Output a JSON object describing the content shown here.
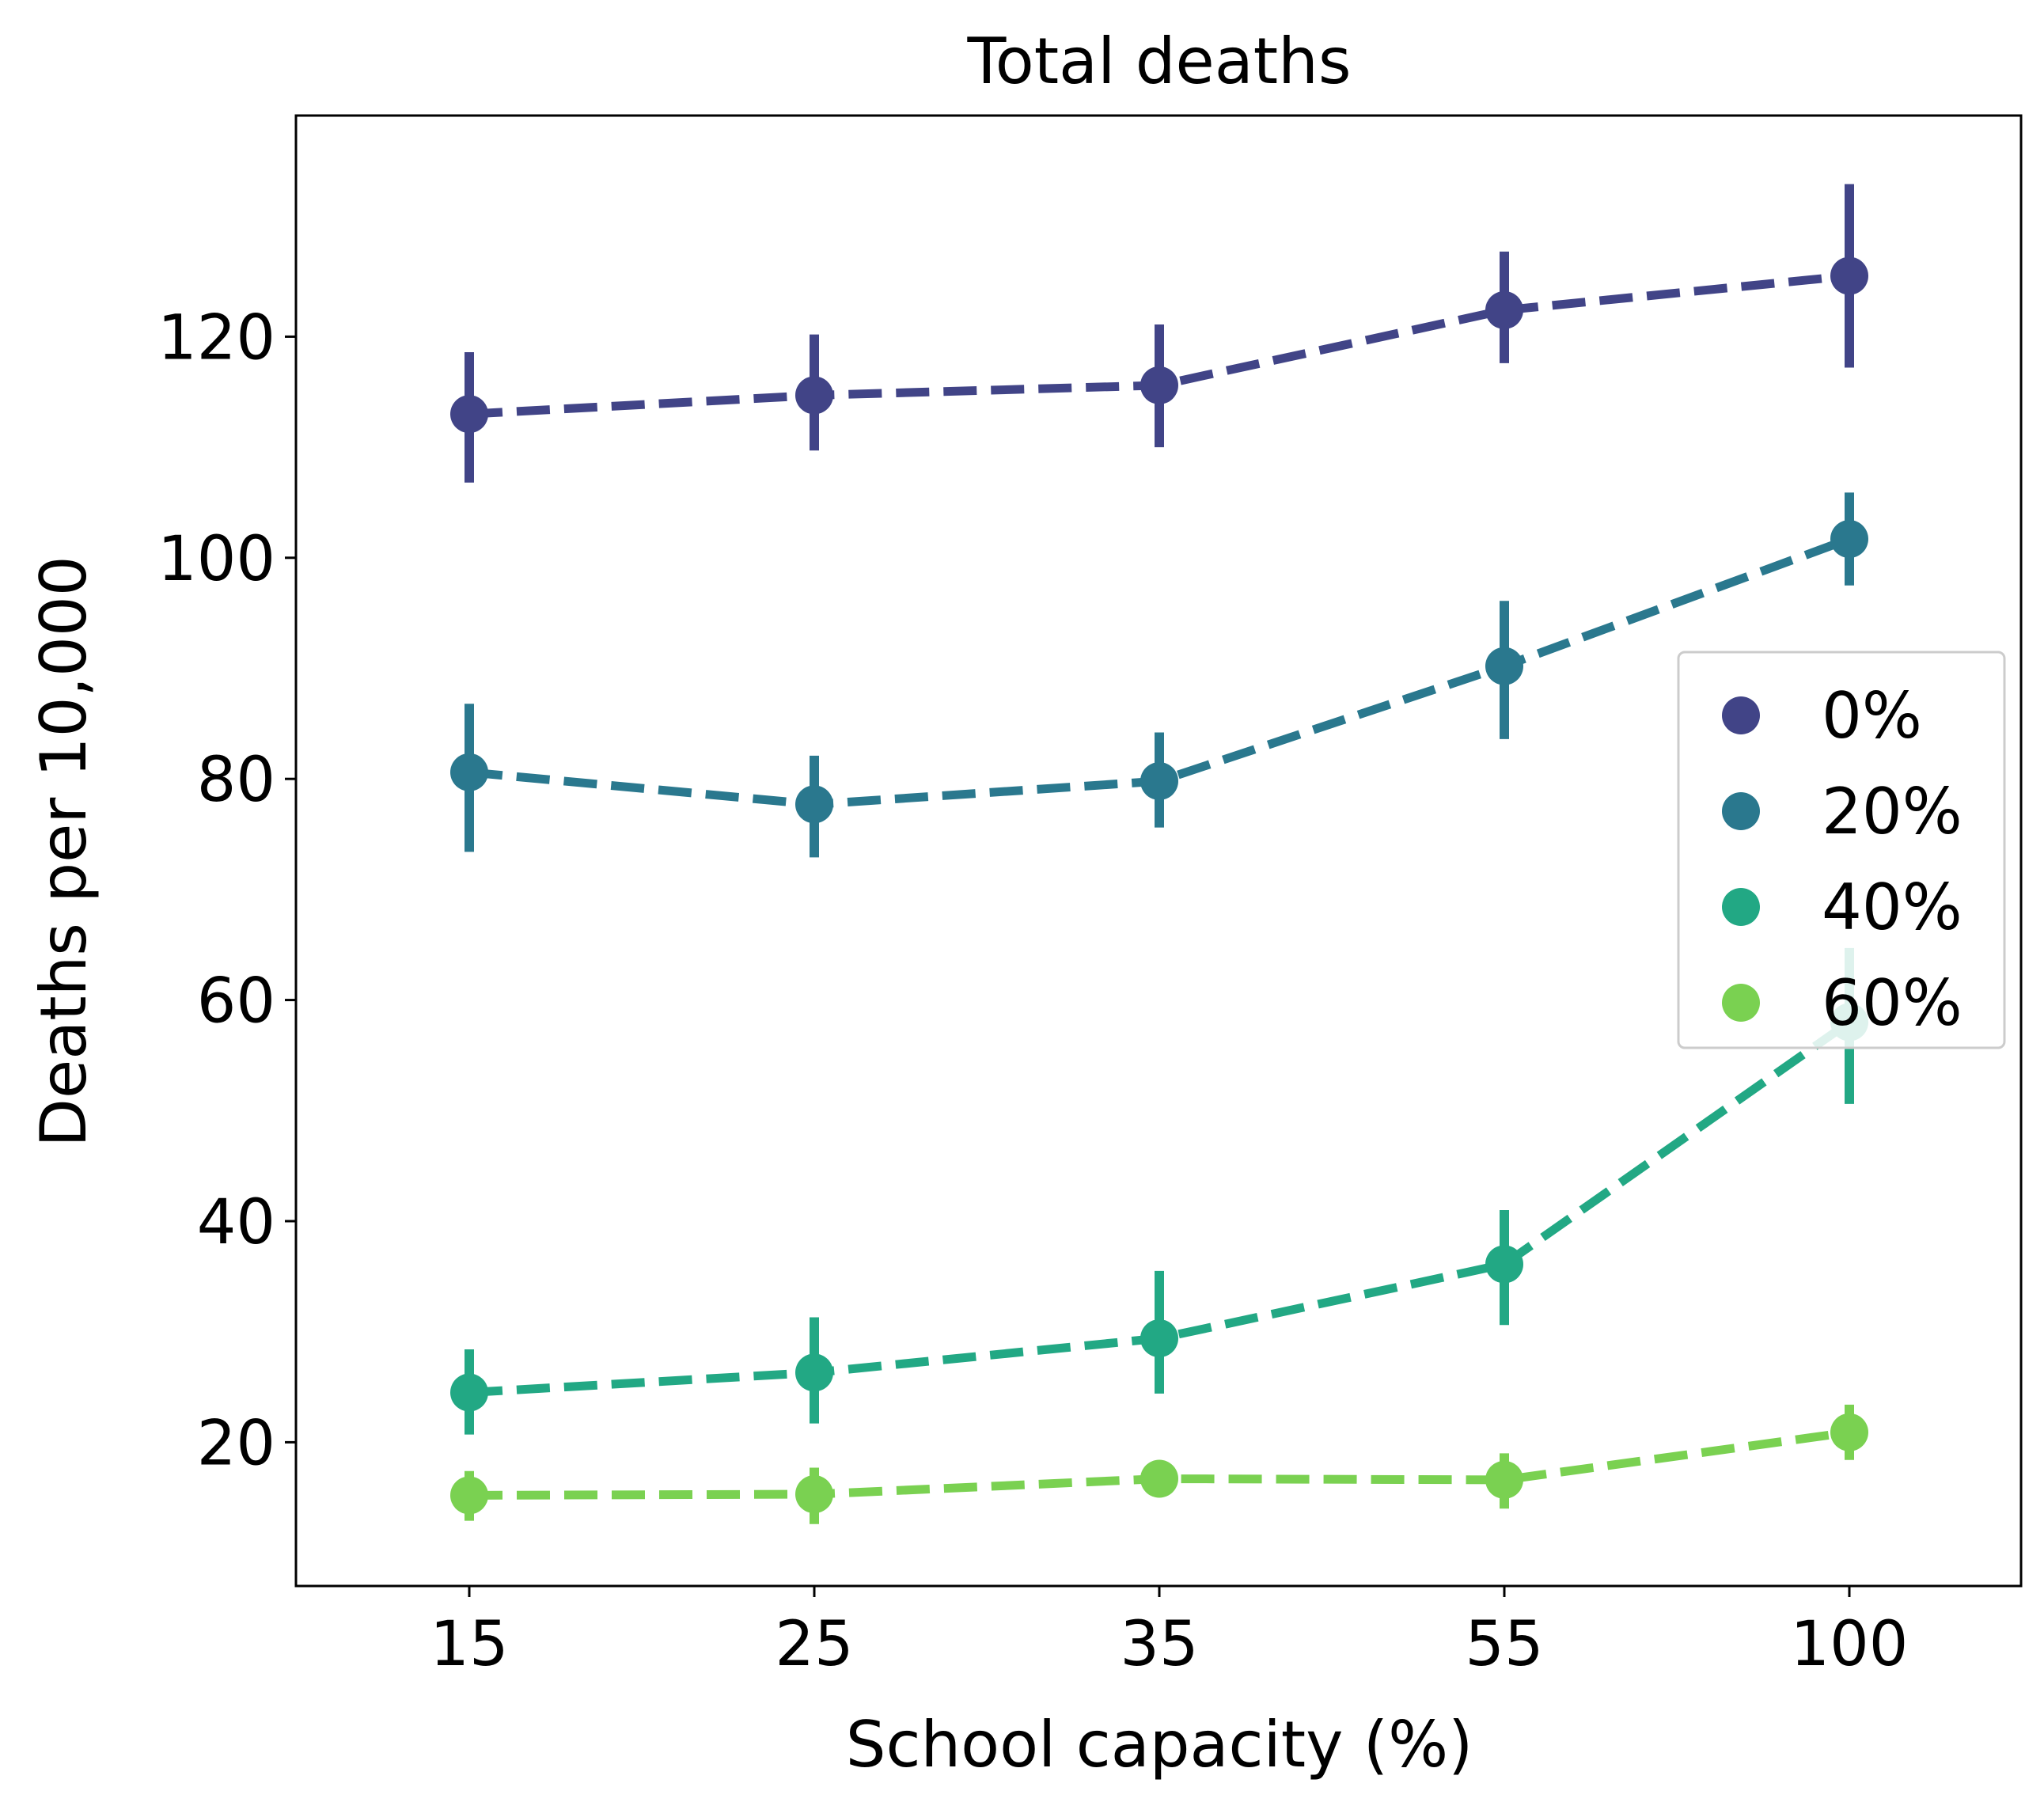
{
  "chart_data": {
    "type": "line",
    "title": "Total deaths",
    "xlabel": "School capacity (%)",
    "ylabel": "Deaths per 10,000",
    "categories": [
      "15",
      "25",
      "35",
      "55",
      "100"
    ],
    "ylim": [
      7,
      140
    ],
    "yticks": [
      20,
      40,
      60,
      80,
      100,
      120
    ],
    "grid": false,
    "legend_position": "center-right",
    "line_style": "dashed",
    "series": [
      {
        "name": "0%",
        "color": "#414487",
        "values": [
          113.0,
          114.7,
          115.6,
          122.4,
          125.5
        ],
        "err_low": [
          106.8,
          109.7,
          110.0,
          117.6,
          117.2
        ],
        "err_high": [
          118.6,
          120.2,
          121.1,
          127.7,
          133.8
        ]
      },
      {
        "name": "20%",
        "color": "#2a788e",
        "values": [
          80.6,
          77.7,
          79.8,
          90.2,
          101.7
        ],
        "err_low": [
          73.4,
          72.9,
          75.6,
          83.6,
          97.5
        ],
        "err_high": [
          86.8,
          82.1,
          84.2,
          96.1,
          105.9
        ]
      },
      {
        "name": "40%",
        "color": "#22a884",
        "values": [
          24.5,
          26.3,
          29.4,
          36.1,
          58.0
        ],
        "err_low": [
          20.7,
          21.7,
          24.4,
          30.6,
          50.6
        ],
        "err_high": [
          28.4,
          31.3,
          35.5,
          41.0,
          64.7
        ]
      },
      {
        "name": "60%",
        "color": "#7ad151",
        "values": [
          15.2,
          15.3,
          16.7,
          16.6,
          20.9
        ],
        "err_low": [
          12.9,
          12.6,
          15.4,
          14.0,
          18.4
        ],
        "err_high": [
          17.4,
          17.7,
          18.1,
          19.0,
          23.4
        ]
      }
    ]
  }
}
